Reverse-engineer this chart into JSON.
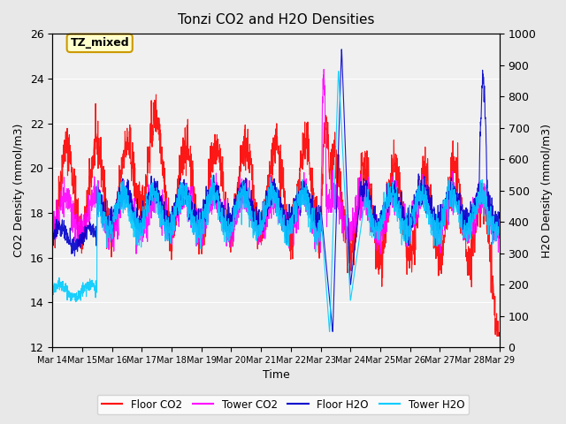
{
  "title": "Tonzi CO2 and H2O Densities",
  "xlabel": "Time",
  "ylabel_left": "CO2 Density (mmol/m3)",
  "ylabel_right": "H2O Density (mmol/m3)",
  "ylim_left": [
    12,
    26
  ],
  "ylim_right": [
    0,
    1000
  ],
  "yticks_left": [
    12,
    14,
    16,
    18,
    20,
    22,
    24,
    26
  ],
  "yticks_right": [
    0,
    100,
    200,
    300,
    400,
    500,
    600,
    700,
    800,
    900,
    1000
  ],
  "xtick_labels": [
    "Mar 14",
    "Mar 15",
    "Mar 16",
    "Mar 17",
    "Mar 18",
    "Mar 19",
    "Mar 20",
    "Mar 21",
    "Mar 22",
    "Mar 23",
    "Mar 24",
    "Mar 25",
    "Mar 26",
    "Mar 27",
    "Mar 28",
    "Mar 29"
  ],
  "annotation_text": "TZ_mixed",
  "annotation_color": "#cc9900",
  "colors": {
    "floor_co2": "#ff0000",
    "tower_co2": "#ff00ff",
    "floor_h2o": "#0000cc",
    "tower_h2o": "#00ccff"
  },
  "legend_labels": [
    "Floor CO2",
    "Tower CO2",
    "Floor H2O",
    "Tower H2O"
  ],
  "background_color": "#e8e8e8",
  "plot_bg_color": "#f0f0f0",
  "seed": 42
}
